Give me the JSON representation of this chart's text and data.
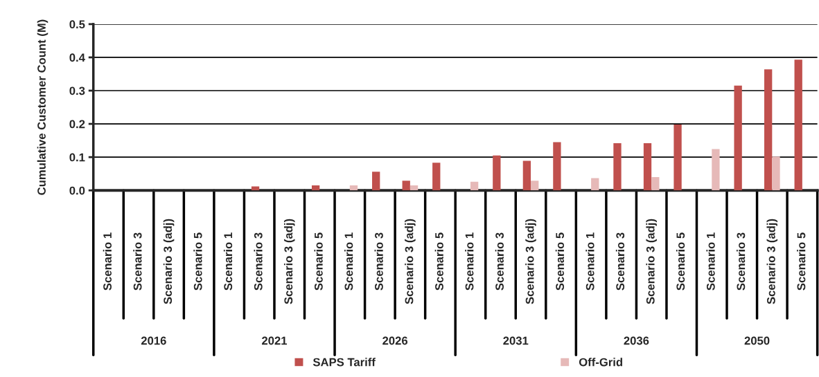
{
  "chart_data": {
    "type": "bar",
    "ylabel": "Cumulative Customer Count (M)",
    "categories": [
      "Scenario 1",
      "Scenario 3",
      "Scenario 3 (adj)",
      "Scenario 5",
      "Scenario 1",
      "Scenario 3",
      "Scenario 3 (adj)",
      "Scenario 5",
      "Scenario 1",
      "Scenario 3",
      "Scenario 3 (adj)",
      "Scenario 5",
      "Scenario 1",
      "Scenario 3",
      "Scenario 3 (adj)",
      "Scenario 5",
      "Scenario 1",
      "Scenario 3",
      "Scenario 3 (adj)",
      "Scenario 5",
      "Scenario 1",
      "Scenario 3",
      "Scenario 3 (adj)",
      "Scenario 5"
    ],
    "annotations": [
      "2016",
      "2021",
      "2026",
      "2031",
      "2036",
      "2050"
    ],
    "series": [
      {
        "name": "SAPS Tariff",
        "color": "#c0504d",
        "values": [
          null,
          null,
          null,
          null,
          null,
          0.012,
          null,
          0.015,
          null,
          0.056,
          0.029,
          0.083,
          null,
          0.105,
          0.089,
          0.145,
          null,
          0.142,
          0.142,
          0.198,
          null,
          0.315,
          0.364,
          0.393
        ]
      },
      {
        "name": "Off-Grid",
        "color": "#e6b9b8",
        "values": [
          null,
          null,
          null,
          null,
          null,
          null,
          null,
          null,
          0.015,
          null,
          0.015,
          null,
          0.026,
          null,
          0.029,
          null,
          0.037,
          null,
          0.04,
          null,
          0.124,
          null,
          0.102,
          null
        ]
      }
    ],
    "ylim": [
      0,
      0.5
    ],
    "yticks": [
      {
        "value": 0,
        "label": "0.0"
      },
      {
        "value": 0.1,
        "label": "0.1"
      },
      {
        "value": 0.2,
        "label": "0.2"
      },
      {
        "value": 0.3,
        "label": "0.3"
      },
      {
        "value": 0.4,
        "label": "0.4"
      },
      {
        "value": 0.5,
        "label": "0.5"
      }
    ],
    "grid": "y",
    "legend": "bottom"
  }
}
